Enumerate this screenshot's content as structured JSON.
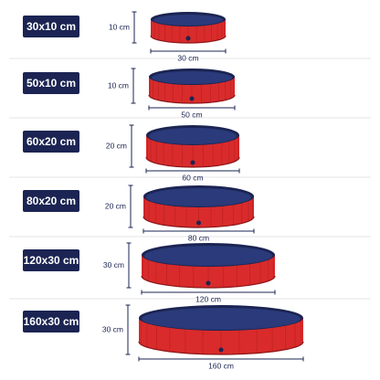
{
  "sizes": [
    {
      "label": "30x10 cm",
      "height": "10 cm",
      "width": "30 cm"
    },
    {
      "label": "50x10 cm",
      "height": "10 cm",
      "width": "50 cm"
    },
    {
      "label": "60x20 cm",
      "height": "20 cm",
      "width": "60 cm"
    },
    {
      "label": "80x20 cm",
      "height": "20 cm",
      "width": "80 cm"
    },
    {
      "label": "120x30 cm",
      "height": "30 cm",
      "width": "120 cm"
    },
    {
      "label": "160x30 cm",
      "height": "30 cm",
      "width": "160 cm"
    }
  ]
}
